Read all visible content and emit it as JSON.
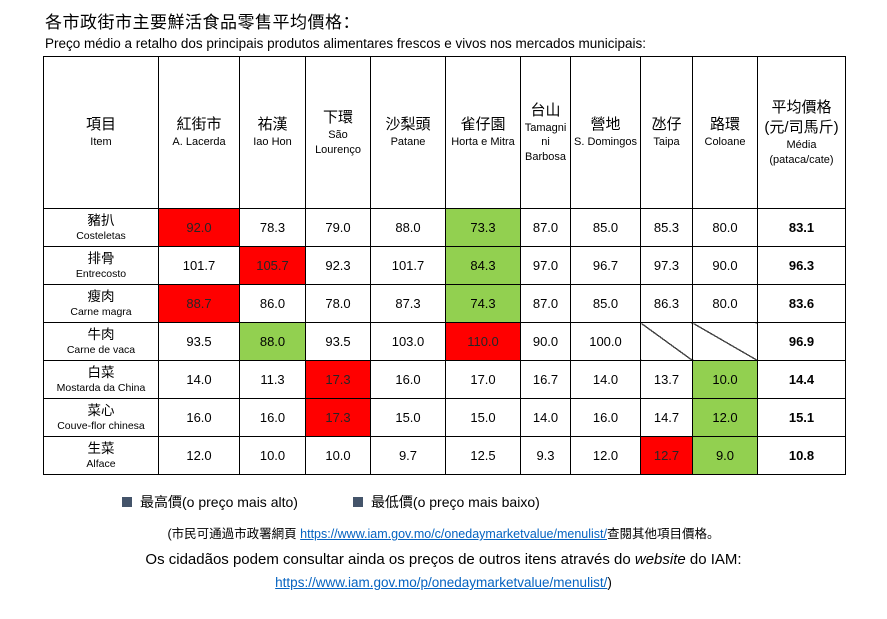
{
  "page": {
    "title_zh": "各市政街市主要鮮活食品零售平均價格：",
    "title_pt": "Preço médio a retalho dos principais produtos alimentares frescos e vivos nos mercados municipais:"
  },
  "colors": {
    "highest_bg": "#FF0000",
    "lowest_bg": "#92D050",
    "legend_border": "#44546A",
    "link": "#0563C1"
  },
  "table": {
    "item_header": {
      "zh": "項目",
      "pt": "Item"
    },
    "markets": [
      {
        "zh": "紅街市",
        "pt": "A. Lacerda"
      },
      {
        "zh": "祐漢",
        "pt": "Iao Hon"
      },
      {
        "zh": "下環",
        "pt": "São Lourenço"
      },
      {
        "zh": "沙梨頭",
        "pt": "Patane"
      },
      {
        "zh": "雀仔園",
        "pt": "Horta e Mitra"
      },
      {
        "zh": "台山",
        "pt": "Tamagnini Barbosa"
      },
      {
        "zh": "營地",
        "pt": "S. Domingos"
      },
      {
        "zh": "氹仔",
        "pt": "Taipa"
      },
      {
        "zh": "路環",
        "pt": "Coloane"
      }
    ],
    "avg_header": {
      "zh": "平均價格 (元/司馬斤)",
      "pt": "Média (pataca/cate)"
    },
    "rows": [
      {
        "label_zh": "豬扒",
        "label_pt": "Costeletas",
        "values": [
          "92.0",
          "78.3",
          "79.0",
          "88.0",
          "73.3",
          "87.0",
          "85.0",
          "85.3",
          "80.0"
        ],
        "avg": "83.1",
        "max": 0,
        "min": 4
      },
      {
        "label_zh": "排骨",
        "label_pt": "Entrecosto",
        "values": [
          "101.7",
          "105.7",
          "92.3",
          "101.7",
          "84.3",
          "97.0",
          "96.7",
          "97.3",
          "90.0"
        ],
        "avg": "96.3",
        "max": 1,
        "min": 4
      },
      {
        "label_zh": "瘦肉",
        "label_pt": "Carne magra",
        "values": [
          "88.7",
          "86.0",
          "78.0",
          "87.3",
          "74.3",
          "87.0",
          "85.0",
          "86.3",
          "80.0"
        ],
        "avg": "83.6",
        "max": 0,
        "min": 4
      },
      {
        "label_zh": "牛肉",
        "label_pt": "Carne de vaca",
        "values": [
          "93.5",
          "88.0",
          "93.5",
          "103.0",
          "110.0",
          "90.0",
          "100.0",
          null,
          null
        ],
        "avg": "96.9",
        "max": 4,
        "min": 1
      },
      {
        "label_zh": "白菜",
        "label_pt": "Mostarda da China",
        "values": [
          "14.0",
          "11.3",
          "17.3",
          "16.0",
          "17.0",
          "16.7",
          "14.0",
          "13.7",
          "10.0"
        ],
        "avg": "14.4",
        "max": 2,
        "min": 8
      },
      {
        "label_zh": "菜心",
        "label_pt": "Couve-flor chinesa",
        "values": [
          "16.0",
          "16.0",
          "17.3",
          "15.0",
          "15.0",
          "14.0",
          "16.0",
          "14.7",
          "12.0"
        ],
        "avg": "15.1",
        "max": 2,
        "min": 8
      },
      {
        "label_zh": "生菜",
        "label_pt": "Alface",
        "values": [
          "12.0",
          "10.0",
          "10.0",
          "9.7",
          "12.5",
          "9.3",
          "12.0",
          "12.7",
          "9.0"
        ],
        "avg": "10.8",
        "max": 7,
        "min": 8
      }
    ]
  },
  "legend": {
    "max_label": "最高價(o preço mais alto)",
    "min_label": "最低價(o preço mais baixo)"
  },
  "footer": {
    "note1_prefix": "(市民可通過市政署網頁 ",
    "note1_link": "https://www.iam.gov.mo/c/onedaymarketvalue/menulist/",
    "note1_suffix": "查閱其他項目價格。",
    "note2_prefix": "Os cidadãos podem consultar ainda os preços de outros itens através do ",
    "note2_italic": "website",
    "note2_suffix": " do IAM:",
    "note3_link": "https://www.iam.gov.mo/p/onedaymarketvalue/menulist/",
    "note3_suffix": ")"
  }
}
